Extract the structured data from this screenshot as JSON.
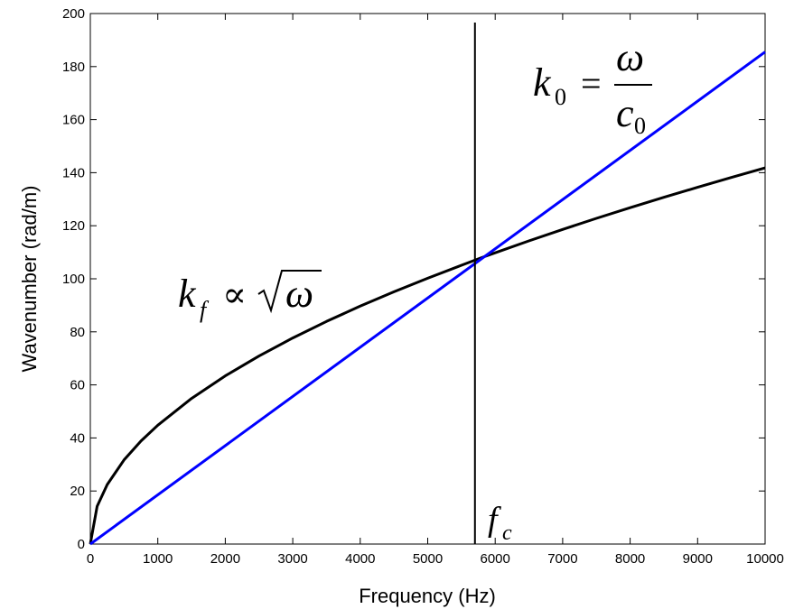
{
  "chart_data": {
    "type": "line",
    "xlabel": "Frequency (Hz)",
    "ylabel": "Wavenumber (rad/m)",
    "xlim": [
      0,
      10000
    ],
    "ylim": [
      0,
      200
    ],
    "xticks": [
      0,
      1000,
      2000,
      3000,
      4000,
      5000,
      6000,
      7000,
      8000,
      9000,
      10000
    ],
    "yticks": [
      0,
      20,
      40,
      60,
      80,
      100,
      120,
      140,
      160,
      180,
      200
    ],
    "grid": false,
    "series": [
      {
        "color": "#000000",
        "x": [
          0,
          10,
          100,
          250,
          500,
          750,
          1000,
          1500,
          2000,
          2500,
          3000,
          3500,
          4000,
          4500,
          5000,
          5500,
          5800,
          6000,
          6500,
          7000,
          7500,
          8000,
          8500,
          9000,
          9500,
          10000
        ],
        "y": [
          0,
          1.4,
          14.2,
          22.4,
          31.7,
          38.8,
          44.8,
          54.9,
          63.4,
          70.9,
          77.7,
          83.9,
          89.7,
          95.1,
          100.2,
          105.1,
          108.0,
          109.8,
          114.3,
          118.6,
          122.8,
          126.8,
          130.7,
          134.5,
          138.2,
          141.8
        ]
      },
      {
        "color": "#0000ff",
        "x": [
          0,
          10000
        ],
        "y": [
          0,
          185.5
        ]
      }
    ],
    "vline": {
      "x": 5700,
      "color": "#000000"
    },
    "annotations": {
      "k0": {
        "k": "k",
        "sub": "0",
        "eq": "=",
        "num": "ω",
        "den": "c",
        "den_sub": "0"
      },
      "kf": {
        "k": "k",
        "sub": "f",
        "prop": "∝",
        "sqrt": "√",
        "arg": "ω"
      },
      "fc": {
        "f": "f",
        "sub": "c"
      }
    }
  }
}
